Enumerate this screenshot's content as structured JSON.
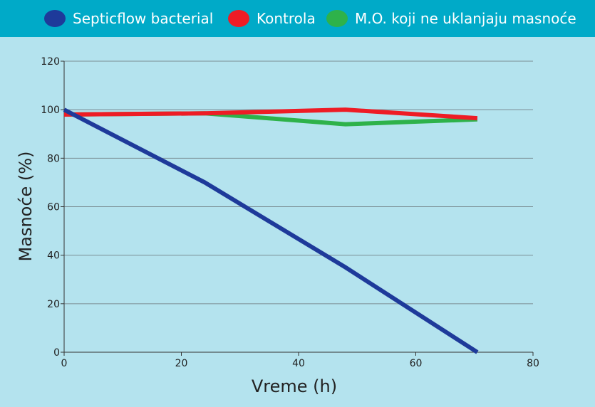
{
  "chart_data": {
    "type": "line",
    "xlabel": "Vreme (h)",
    "ylabel": "Masnoće (%)",
    "xlim": [
      0,
      80
    ],
    "ylim": [
      0,
      120
    ],
    "xticks": [
      0,
      20,
      40,
      60,
      80
    ],
    "yticks": [
      0,
      20,
      40,
      60,
      80,
      100,
      120
    ],
    "grid": "horizontal",
    "legend_position": "top",
    "series": [
      {
        "name": "Septicflow bacterial",
        "color": "#1e3a9a",
        "x": [
          0,
          24,
          48,
          70.5
        ],
        "y": [
          100,
          70,
          35,
          0
        ]
      },
      {
        "name": "Kontrola",
        "color": "#ee1c25",
        "x": [
          0,
          24,
          48,
          70.5
        ],
        "y": [
          98,
          98.5,
          100,
          96.5
        ]
      },
      {
        "name": "M.O. koji ne uklanjaju masnoće",
        "color": "#2eb24a",
        "x": [
          0,
          24,
          48,
          70.5
        ],
        "y": [
          98,
          98.5,
          94,
          96
        ]
      }
    ]
  }
}
